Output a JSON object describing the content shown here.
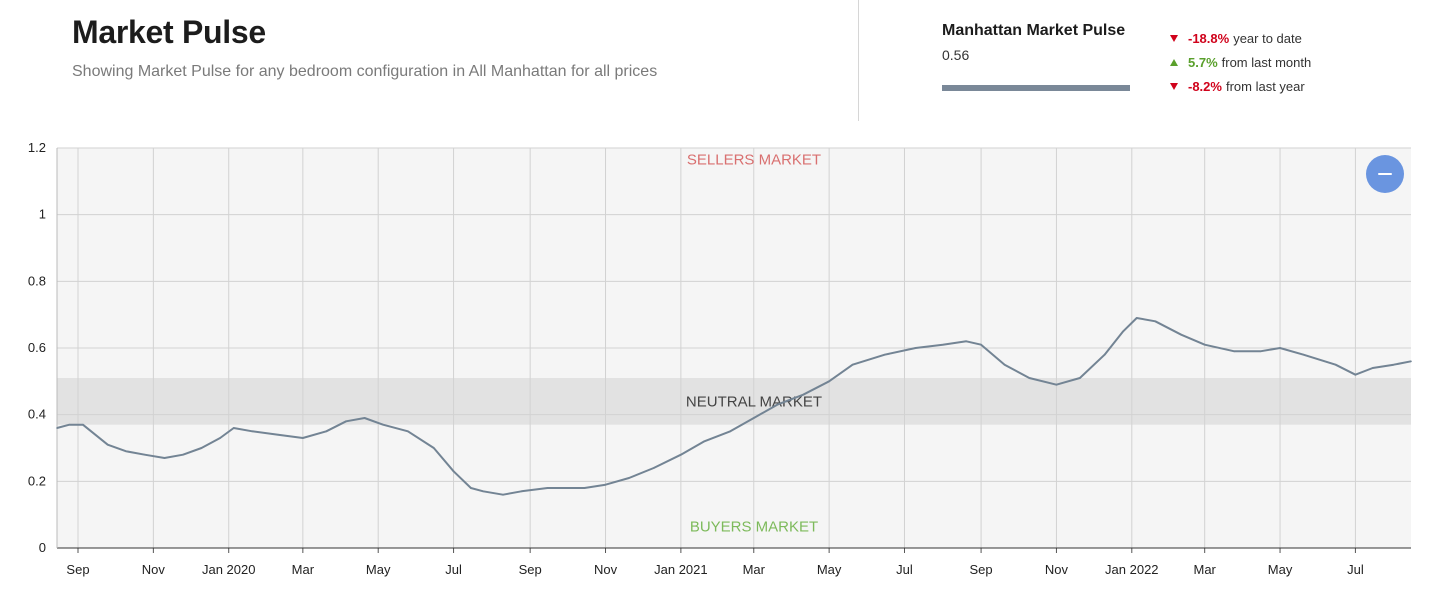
{
  "header": {
    "title": "Market Pulse",
    "subtitle": "Showing Market Pulse for any bedroom configuration in All Manhattan for all prices"
  },
  "summary": {
    "name": "Manhattan Market Pulse",
    "value": "0.56",
    "bar_color": "#7a8898",
    "stats": [
      {
        "direction": "down",
        "pct": "-18.8%",
        "label": "year to date",
        "color": "#d0021b"
      },
      {
        "direction": "up",
        "pct": "5.7%",
        "label": "from last month",
        "color": "#5aa02c"
      },
      {
        "direction": "down",
        "pct": "-8.2%",
        "label": "from last year",
        "color": "#d0021b"
      }
    ]
  },
  "collapse_button_icon": "minus-icon",
  "chart_data": {
    "type": "line",
    "title": "",
    "xlabel": "",
    "ylabel": "",
    "ylim": [
      0,
      1.2
    ],
    "yticks": [
      0,
      0.2,
      0.4,
      0.6,
      0.8,
      1,
      1.2
    ],
    "ytick_labels": [
      "0",
      "0.2",
      "0.4",
      "0.6",
      "0.8",
      "1",
      "1.2"
    ],
    "xlim": [
      "2019-08-15",
      "2022-08-15"
    ],
    "xticks": [
      {
        "date": "2019-09-01",
        "label": "Sep"
      },
      {
        "date": "2019-11-01",
        "label": "Nov"
      },
      {
        "date": "2020-01-01",
        "label": "Jan 2020"
      },
      {
        "date": "2020-03-01",
        "label": "Mar"
      },
      {
        "date": "2020-05-01",
        "label": "May"
      },
      {
        "date": "2020-07-01",
        "label": "Jul"
      },
      {
        "date": "2020-09-01",
        "label": "Sep"
      },
      {
        "date": "2020-11-01",
        "label": "Nov"
      },
      {
        "date": "2021-01-01",
        "label": "Jan 2021"
      },
      {
        "date": "2021-03-01",
        "label": "Mar"
      },
      {
        "date": "2021-05-01",
        "label": "May"
      },
      {
        "date": "2021-07-01",
        "label": "Jul"
      },
      {
        "date": "2021-09-01",
        "label": "Sep"
      },
      {
        "date": "2021-11-01",
        "label": "Nov"
      },
      {
        "date": "2022-01-01",
        "label": "Jan 2022"
      },
      {
        "date": "2022-03-01",
        "label": "Mar"
      },
      {
        "date": "2022-05-01",
        "label": "May"
      },
      {
        "date": "2022-07-01",
        "label": "Jul"
      }
    ],
    "grid": true,
    "bands": [
      {
        "label": "SELLERS MARKET",
        "color": "#d97070"
      },
      {
        "label": "NEUTRAL MARKET",
        "ymin": 0.37,
        "ymax": 0.51,
        "color": "#444444",
        "fill": "#e2e2e2"
      },
      {
        "label": "BUYERS MARKET",
        "color": "#7dba5b"
      }
    ],
    "series": [
      {
        "color": "#738494",
        "points": [
          [
            "2019-08-15",
            0.36
          ],
          [
            "2019-08-25",
            0.37
          ],
          [
            "2019-09-05",
            0.37
          ],
          [
            "2019-09-15",
            0.34
          ],
          [
            "2019-09-25",
            0.31
          ],
          [
            "2019-10-10",
            0.29
          ],
          [
            "2019-10-25",
            0.28
          ],
          [
            "2019-11-10",
            0.27
          ],
          [
            "2019-11-25",
            0.28
          ],
          [
            "2019-12-10",
            0.3
          ],
          [
            "2019-12-25",
            0.33
          ],
          [
            "2020-01-05",
            0.36
          ],
          [
            "2020-01-20",
            0.35
          ],
          [
            "2020-02-10",
            0.34
          ],
          [
            "2020-03-01",
            0.33
          ],
          [
            "2020-03-20",
            0.35
          ],
          [
            "2020-04-05",
            0.38
          ],
          [
            "2020-04-20",
            0.39
          ],
          [
            "2020-05-05",
            0.37
          ],
          [
            "2020-05-25",
            0.35
          ],
          [
            "2020-06-15",
            0.3
          ],
          [
            "2020-07-01",
            0.23
          ],
          [
            "2020-07-15",
            0.18
          ],
          [
            "2020-07-25",
            0.17
          ],
          [
            "2020-08-10",
            0.16
          ],
          [
            "2020-08-25",
            0.17
          ],
          [
            "2020-09-15",
            0.18
          ],
          [
            "2020-10-15",
            0.18
          ],
          [
            "2020-11-01",
            0.19
          ],
          [
            "2020-11-20",
            0.21
          ],
          [
            "2020-12-10",
            0.24
          ],
          [
            "2021-01-01",
            0.28
          ],
          [
            "2021-01-20",
            0.32
          ],
          [
            "2021-02-10",
            0.35
          ],
          [
            "2021-03-01",
            0.39
          ],
          [
            "2021-03-20",
            0.43
          ],
          [
            "2021-04-10",
            0.46
          ],
          [
            "2021-05-01",
            0.5
          ],
          [
            "2021-05-20",
            0.55
          ],
          [
            "2021-06-15",
            0.58
          ],
          [
            "2021-07-10",
            0.6
          ],
          [
            "2021-08-01",
            0.61
          ],
          [
            "2021-08-20",
            0.62
          ],
          [
            "2021-09-01",
            0.61
          ],
          [
            "2021-09-20",
            0.55
          ],
          [
            "2021-10-10",
            0.51
          ],
          [
            "2021-11-01",
            0.49
          ],
          [
            "2021-11-20",
            0.51
          ],
          [
            "2021-12-10",
            0.58
          ],
          [
            "2021-12-25",
            0.65
          ],
          [
            "2022-01-05",
            0.69
          ],
          [
            "2022-01-20",
            0.68
          ],
          [
            "2022-02-10",
            0.64
          ],
          [
            "2022-03-01",
            0.61
          ],
          [
            "2022-03-25",
            0.59
          ],
          [
            "2022-04-15",
            0.59
          ],
          [
            "2022-05-01",
            0.6
          ],
          [
            "2022-05-20",
            0.58
          ],
          [
            "2022-06-15",
            0.55
          ],
          [
            "2022-07-01",
            0.52
          ],
          [
            "2022-07-15",
            0.54
          ],
          [
            "2022-08-01",
            0.55
          ],
          [
            "2022-08-15",
            0.56
          ]
        ]
      }
    ]
  }
}
